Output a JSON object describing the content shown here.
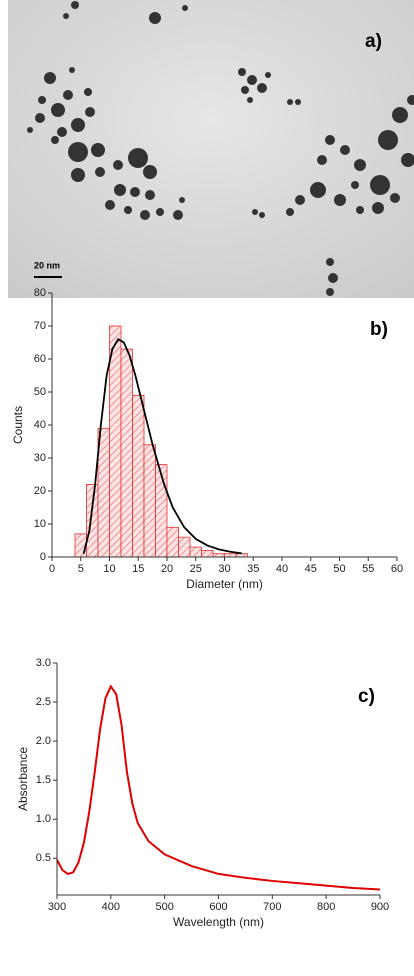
{
  "image": {
    "label": "a)",
    "scale_bar": "20 nm"
  },
  "chart_data": [
    {
      "type": "histogram",
      "annotation": "b)",
      "xlabel": "Diameter (nm)",
      "ylabel": "Counts",
      "bins": [
        4,
        6,
        8,
        10,
        12,
        14,
        16,
        18,
        20,
        22,
        24,
        26,
        28,
        30,
        32,
        34
      ],
      "counts": [
        7,
        22,
        39,
        70,
        63,
        49,
        34,
        28,
        9,
        6,
        3,
        2,
        1,
        1,
        1
      ],
      "color": "#e03030",
      "fit": {
        "x": [
          5.5,
          6.5,
          7.5,
          8.5,
          9.5,
          10.5,
          11.5,
          12.5,
          13.5,
          14.5,
          15.5,
          16.5,
          17.5,
          18.5,
          19.5,
          21,
          23,
          25,
          27,
          29,
          31,
          33
        ],
        "values": [
          1,
          8,
          22,
          40,
          55,
          63,
          66,
          65,
          61,
          55,
          48,
          41,
          34,
          28,
          22,
          15,
          9,
          5.5,
          3.5,
          2.3,
          1.6,
          1.1
        ],
        "color": "#000000"
      },
      "xlim": [
        0,
        60
      ],
      "ylim": [
        0,
        80
      ],
      "xticks": [
        0,
        5,
        10,
        15,
        20,
        25,
        30,
        35,
        40,
        45,
        50,
        55,
        60
      ],
      "yticks": [
        0,
        10,
        20,
        30,
        40,
        50,
        60,
        70,
        80
      ]
    },
    {
      "type": "line",
      "annotation": "c)",
      "xlabel": "Wavelength (nm)",
      "ylabel": "Absorbance",
      "x": [
        300,
        310,
        320,
        330,
        340,
        350,
        360,
        370,
        380,
        390,
        400,
        410,
        420,
        430,
        440,
        450,
        470,
        500,
        550,
        600,
        650,
        700,
        750,
        800,
        850,
        900
      ],
      "values": [
        0.48,
        0.35,
        0.3,
        0.32,
        0.45,
        0.7,
        1.1,
        1.6,
        2.15,
        2.55,
        2.7,
        2.6,
        2.2,
        1.6,
        1.2,
        0.95,
        0.72,
        0.55,
        0.4,
        0.3,
        0.25,
        0.21,
        0.18,
        0.15,
        0.12,
        0.1
      ],
      "color": "#e00000",
      "xlim": [
        300,
        900
      ],
      "ylim": [
        0.03,
        3.0
      ],
      "xticks": [
        300,
        400,
        500,
        600,
        700,
        800,
        900
      ],
      "yticks": [
        0.5,
        {
          "value": 1.0,
          "label": "1.0"
        },
        1.5,
        {
          "value": 2.0,
          "label": "2.0"
        },
        2.5,
        {
          "value": 3.0,
          "label": "3.0"
        }
      ]
    }
  ]
}
